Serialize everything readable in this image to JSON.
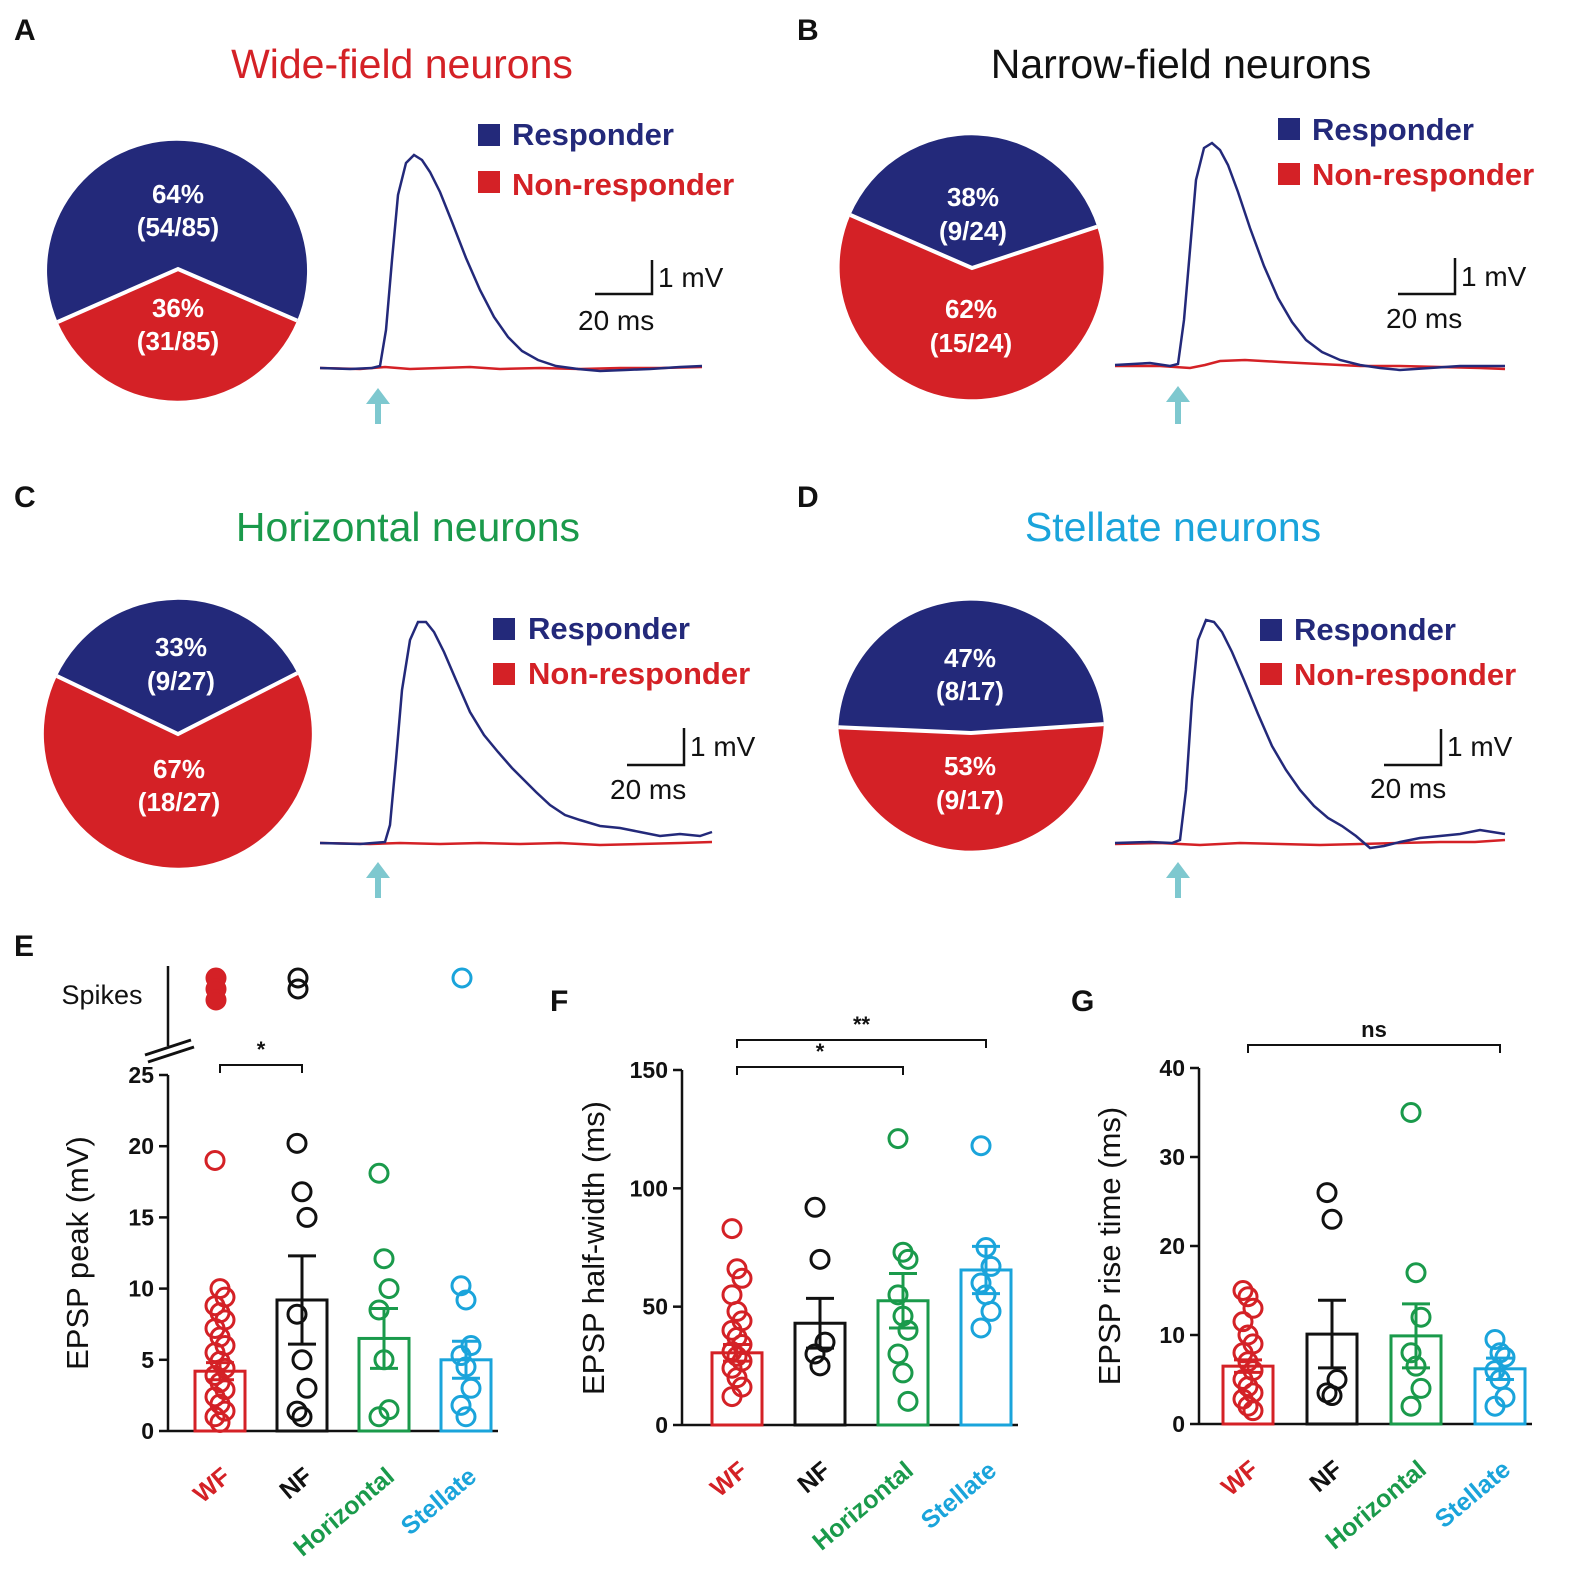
{
  "colors": {
    "responder": "#23297a",
    "non_responder": "#d42126",
    "arrow": "#7ec8cf",
    "wf": "#d42126",
    "nf": "#111111",
    "horizontal": "#1a9a4b",
    "stellate": "#1aa4db"
  },
  "legend": {
    "responder": "Responder",
    "non_responder": "Non-responder"
  },
  "scale_bar": {
    "voltage": "1 mV",
    "time": "20 ms"
  },
  "chart_data": [
    {
      "panel": "A",
      "type": "pie",
      "title": "Wide-field neurons",
      "title_color": "#d42126",
      "slices": [
        {
          "name": "Responder",
          "percent": 64,
          "percent_label": "64%",
          "count_label": "(54/85)"
        },
        {
          "name": "Non-responder",
          "percent": 36,
          "percent_label": "36%",
          "count_label": "(31/85)"
        }
      ]
    },
    {
      "panel": "B",
      "type": "pie",
      "title": "Narrow-field neurons",
      "title_color": "#111111",
      "slices": [
        {
          "name": "Responder",
          "percent": 38,
          "percent_label": "38%",
          "count_label": "(9/24)"
        },
        {
          "name": "Non-responder",
          "percent": 62,
          "percent_label": "62%",
          "count_label": "(15/24)"
        }
      ]
    },
    {
      "panel": "C",
      "type": "pie",
      "title": "Horizontal neurons",
      "title_color": "#1a9a4b",
      "slices": [
        {
          "name": "Responder",
          "percent": 33,
          "percent_label": "33%",
          "count_label": "(9/27)"
        },
        {
          "name": "Non-responder",
          "percent": 67,
          "percent_label": "67%",
          "count_label": "(18/27)"
        }
      ]
    },
    {
      "panel": "D",
      "type": "pie",
      "title": "Stellate neurons",
      "title_color": "#1aa4db",
      "slices": [
        {
          "name": "Responder",
          "percent": 47,
          "percent_label": "47%",
          "count_label": "(8/17)"
        },
        {
          "name": "Non-responder",
          "percent": 53,
          "percent_label": "53%",
          "count_label": "(9/17)"
        }
      ]
    },
    {
      "panel": "E",
      "type": "bar",
      "ylabel": "EPSP peak (mV)",
      "ylim": [
        0,
        25
      ],
      "yticks": [
        0,
        5,
        10,
        15,
        20,
        25
      ],
      "spikes_label": "Spikes",
      "categories": [
        "WF",
        "NF",
        "Horizontal",
        "Stellate"
      ],
      "means": [
        4.2,
        9.2,
        6.5,
        5.0
      ],
      "sem": [
        0.6,
        3.1,
        2.1,
        1.3
      ],
      "points": [
        [
          19.0,
          10.0,
          9.4,
          8.8,
          8.3,
          7.8,
          7.2,
          6.6,
          6.0,
          5.5,
          4.9,
          4.4,
          3.9,
          3.4,
          2.9,
          2.4,
          1.9,
          1.4,
          1.0,
          0.6
        ],
        [
          20.2,
          16.8,
          15.0,
          8.2,
          5.0,
          3.0,
          1.4,
          1.0
        ],
        [
          18.1,
          12.1,
          10.0,
          8.5,
          5.0,
          1.5,
          1.0
        ],
        [
          10.2,
          9.2,
          6.0,
          5.3,
          4.5,
          3.0,
          1.8,
          1.0
        ]
      ],
      "spike_points": [
        3,
        2,
        0,
        1
      ],
      "significance": [
        {
          "from": 0,
          "to": 1,
          "label": "*"
        }
      ]
    },
    {
      "panel": "F",
      "type": "bar",
      "ylabel": "EPSP half-width (ms)",
      "ylim": [
        0,
        150
      ],
      "yticks": [
        0,
        50,
        100,
        150
      ],
      "categories": [
        "WF",
        "NF",
        "Horizontal",
        "Stellate"
      ],
      "means": [
        30.5,
        43.0,
        52.5,
        65.5
      ],
      "sem": [
        3.5,
        10.5,
        11.5,
        10.0
      ],
      "points": [
        [
          83,
          66,
          62,
          55,
          48,
          44,
          40,
          37,
          34,
          31,
          29,
          27,
          24,
          20,
          16,
          12
        ],
        [
          92,
          70,
          35,
          30,
          25
        ],
        [
          121,
          73,
          70,
          55,
          46,
          40,
          30,
          22,
          10
        ],
        [
          118,
          75,
          67,
          60,
          55,
          48,
          41
        ]
      ],
      "significance": [
        {
          "from": 0,
          "to": 2,
          "label": "*"
        },
        {
          "from": 0,
          "to": 3,
          "label": "**"
        }
      ]
    },
    {
      "panel": "G",
      "type": "bar",
      "ylabel": "EPSP rise time (ms)",
      "ylim": [
        0,
        40
      ],
      "yticks": [
        0,
        10,
        20,
        30,
        40
      ],
      "categories": [
        "WF",
        "NF",
        "Horizontal",
        "Stellate"
      ],
      "means": [
        6.5,
        10.1,
        9.9,
        6.2
      ],
      "sem": [
        0.7,
        3.8,
        3.6,
        1.2
      ],
      "points": [
        [
          15.0,
          14.3,
          13.0,
          11.5,
          10.0,
          9.0,
          8.0,
          7.0,
          6.0,
          5.0,
          4.2,
          3.5,
          2.8,
          2.0,
          1.5
        ],
        [
          26.0,
          23.0,
          5.0,
          3.5,
          3.2
        ],
        [
          35.0,
          17.0,
          12.0,
          8.0,
          6.5,
          4.0,
          2.0
        ],
        [
          9.5,
          8.0,
          7.5,
          6.0,
          5.0,
          3.0,
          2.0
        ]
      ],
      "significance": [
        {
          "from": 0,
          "to": 3,
          "label": "ns"
        }
      ]
    }
  ]
}
